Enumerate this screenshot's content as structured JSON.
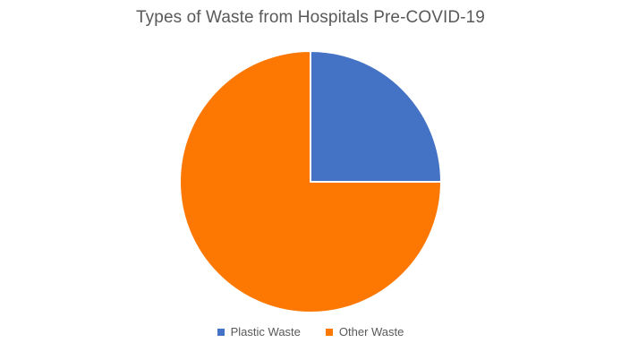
{
  "chart_data": {
    "type": "pie",
    "title": "Types of Waste from Hospitals Pre-COVID-19",
    "labels": [
      "Plastic Waste",
      "Other Waste"
    ],
    "values": [
      25,
      75
    ],
    "colors": [
      "#4472C4",
      "#FC7802"
    ],
    "slice_border_color": "#FFFFFF",
    "title_color": "#595959",
    "legend_text_color": "#595959",
    "legend_position": "bottom",
    "start_angle_deg": 0,
    "direction": "clockwise",
    "background": "#FFFFFF"
  }
}
